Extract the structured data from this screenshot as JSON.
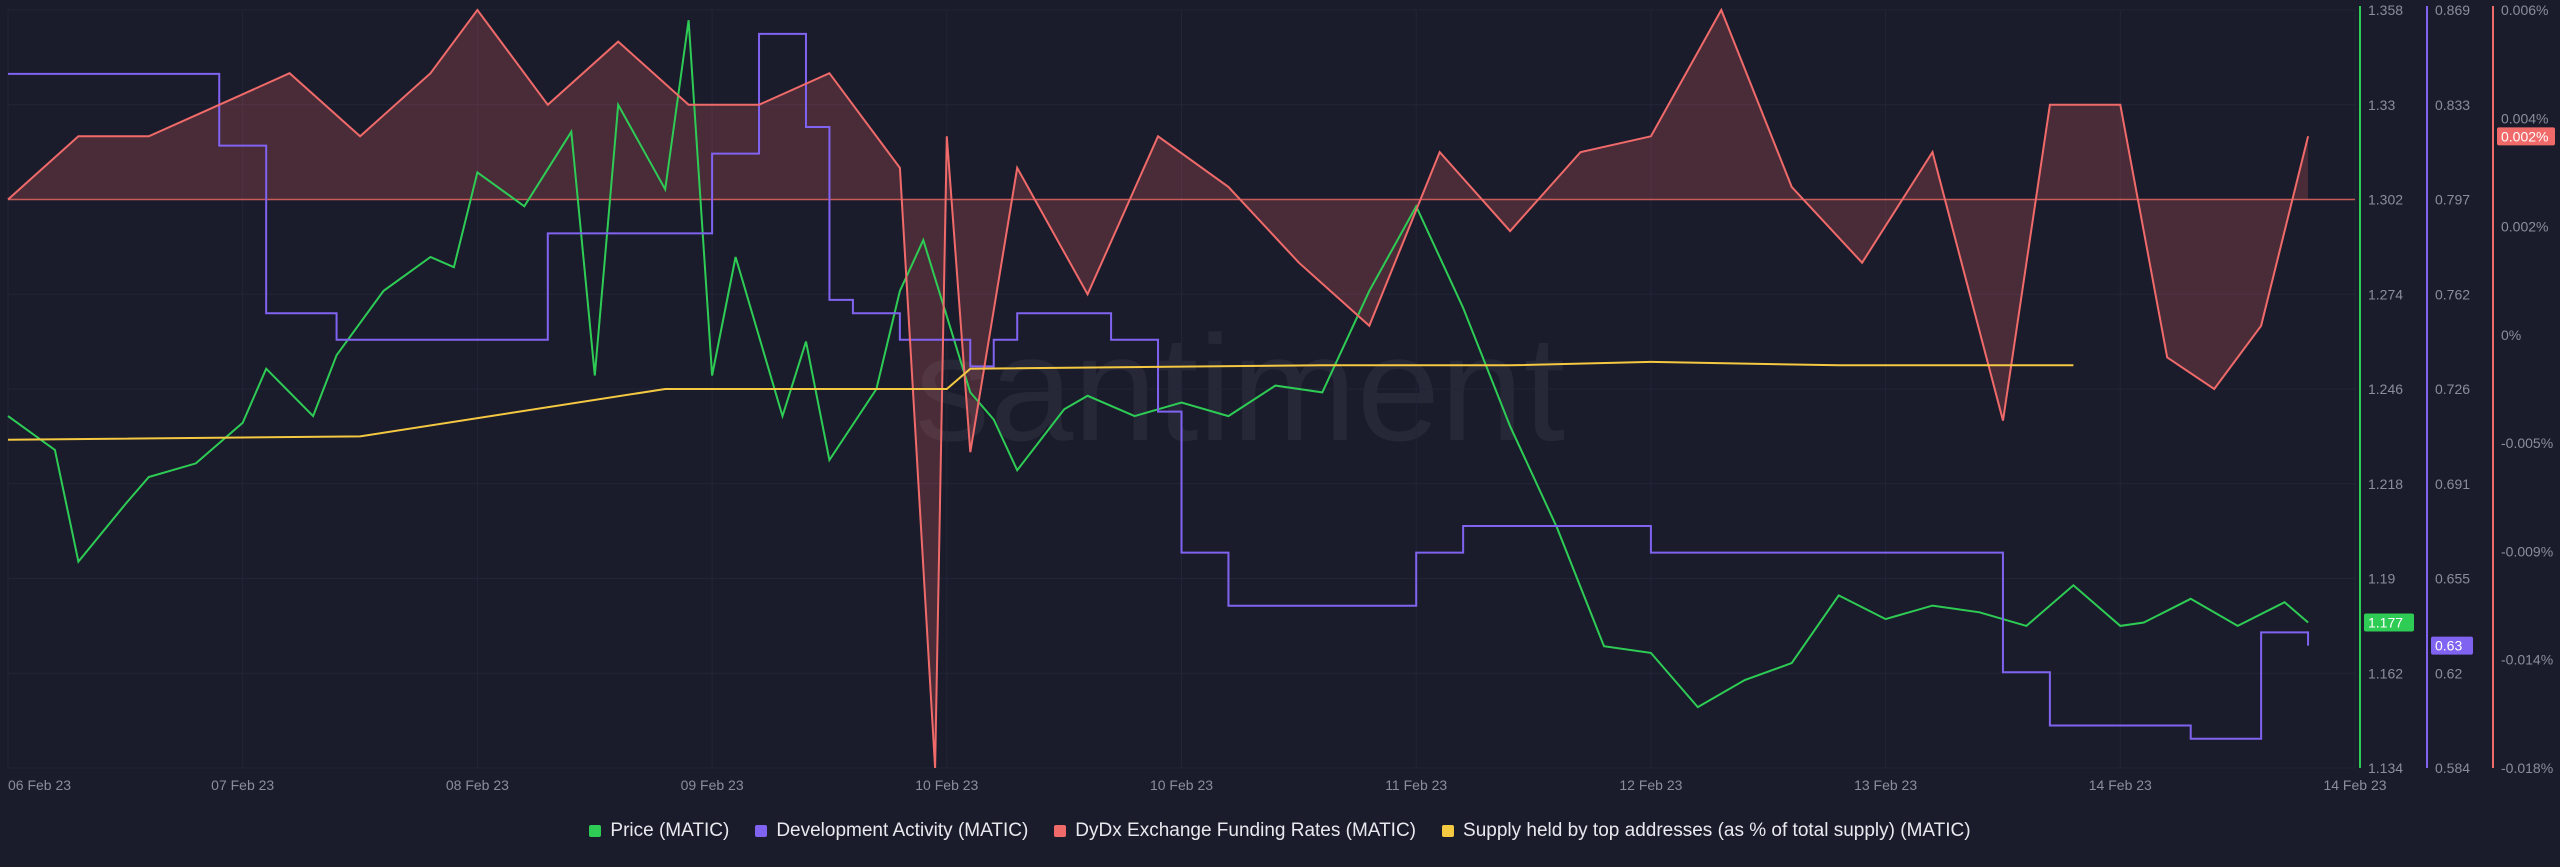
{
  "chart_data": {
    "type": "line",
    "watermark": "santiment",
    "x_ticks": [
      "06 Feb 23",
      "07 Feb 23",
      "08 Feb 23",
      "09 Feb 23",
      "10 Feb 23",
      "10 Feb 23",
      "11 Feb 23",
      "12 Feb 23",
      "13 Feb 23",
      "14 Feb 23",
      "14 Feb 23"
    ],
    "axes": {
      "price": {
        "ticks": [
          "1.358",
          "1.33",
          "1.302",
          "1.274",
          "1.246",
          "1.218",
          "1.19",
          "1.162",
          "1.134"
        ],
        "range": [
          1.134,
          1.358
        ],
        "color": "#2ecc55",
        "current_label": "1.177"
      },
      "dev_activity": {
        "ticks": [
          "0.869",
          "0.833",
          "0.797",
          "0.762",
          "0.726",
          "0.691",
          "0.655",
          "0.62",
          "0.584"
        ],
        "range": [
          0.584,
          0.869
        ],
        "color": "#8063f0",
        "current_label": "0.63"
      },
      "funding": {
        "ticks": [
          "0.006%",
          "0.004%",
          "0.002%",
          "0%",
          "-0.005%",
          "-0.009%",
          "-0.014%",
          "-0.018%"
        ],
        "range": [
          -0.018,
          0.006
        ],
        "color": "#f06a6a",
        "current_label": "0.002%"
      }
    },
    "series": [
      {
        "name": "Price (MATIC)",
        "color": "#2ecc55",
        "axis": "price",
        "x": [
          0,
          0.2,
          0.3,
          0.5,
          0.6,
          0.8,
          1.0,
          1.1,
          1.3,
          1.4,
          1.6,
          1.8,
          1.9,
          2.0,
          2.2,
          2.4,
          2.5,
          2.6,
          2.8,
          2.9,
          3.0,
          3.1,
          3.3,
          3.4,
          3.5,
          3.7,
          3.8,
          3.9,
          4.1,
          4.2,
          4.3,
          4.5,
          4.6,
          4.8,
          4.9,
          5.0,
          5.2,
          5.4,
          5.6,
          5.8,
          6.0,
          6.2,
          6.4,
          6.6,
          6.8,
          7.0,
          7.2,
          7.4,
          7.6,
          7.8,
          8.0,
          8.2,
          8.4,
          8.6,
          8.8,
          9.0,
          9.1,
          9.3,
          9.5,
          9.7,
          9.8
        ],
        "values": [
          1.238,
          1.228,
          1.195,
          1.212,
          1.22,
          1.224,
          1.236,
          1.252,
          1.238,
          1.256,
          1.275,
          1.285,
          1.282,
          1.31,
          1.3,
          1.322,
          1.25,
          1.33,
          1.305,
          1.355,
          1.25,
          1.285,
          1.238,
          1.26,
          1.225,
          1.246,
          1.275,
          1.29,
          1.245,
          1.237,
          1.222,
          1.24,
          1.244,
          1.238,
          1.24,
          1.242,
          1.238,
          1.247,
          1.245,
          1.275,
          1.3,
          1.27,
          1.235,
          1.205,
          1.17,
          1.168,
          1.152,
          1.16,
          1.165,
          1.185,
          1.178,
          1.182,
          1.18,
          1.176,
          1.188,
          1.176,
          1.177,
          1.184,
          1.176,
          1.183,
          1.177
        ]
      },
      {
        "name": "Development Activity (MATIC)",
        "color": "#8063f0",
        "axis": "dev_activity",
        "x": [
          0,
          0.5,
          0.9,
          1.1,
          1.4,
          2.0,
          2.3,
          2.7,
          3.0,
          3.2,
          3.4,
          3.5,
          3.6,
          3.8,
          4.1,
          4.2,
          4.3,
          4.7,
          4.9,
          5.0,
          5.2,
          5.6,
          6.0,
          6.2,
          6.6,
          7.0,
          8.0,
          8.3,
          8.5,
          8.7,
          8.9,
          9.1,
          9.3,
          9.5,
          9.6,
          9.8
        ],
        "values": [
          0.845,
          0.845,
          0.818,
          0.755,
          0.745,
          0.745,
          0.785,
          0.785,
          0.815,
          0.86,
          0.825,
          0.76,
          0.755,
          0.745,
          0.735,
          0.745,
          0.755,
          0.745,
          0.718,
          0.665,
          0.645,
          0.645,
          0.665,
          0.675,
          0.675,
          0.665,
          0.665,
          0.665,
          0.62,
          0.6,
          0.6,
          0.6,
          0.595,
          0.595,
          0.635,
          0.63
        ]
      },
      {
        "name": "DyDx Exchange Funding Rates (MATIC)",
        "color": "#f06a6a",
        "axis": "funding",
        "x": [
          0,
          0.3,
          0.6,
          0.9,
          1.2,
          1.5,
          1.8,
          2.0,
          2.3,
          2.6,
          2.9,
          3.2,
          3.5,
          3.8,
          3.95,
          4.0,
          4.1,
          4.3,
          4.6,
          4.9,
          5.2,
          5.5,
          5.8,
          6.1,
          6.4,
          6.7,
          7.0,
          7.3,
          7.6,
          7.9,
          8.2,
          8.5,
          8.7,
          9.0,
          9.2,
          9.4,
          9.6,
          9.8
        ],
        "values": [
          0,
          0.002,
          0.002,
          0.003,
          0.004,
          0.002,
          0.004,
          0.006,
          0.003,
          0.005,
          0.003,
          0.003,
          0.004,
          0.001,
          -0.018,
          0.002,
          -0.008,
          0.001,
          -0.003,
          0.002,
          0.0004,
          -0.002,
          -0.004,
          0.0015,
          -0.001,
          0.0015,
          0.002,
          0.006,
          0.0004,
          -0.002,
          0.0015,
          -0.007,
          0.003,
          0.003,
          -0.005,
          -0.006,
          -0.004,
          0.002
        ]
      },
      {
        "name": "Supply held by top addresses (as % of total supply) (MATIC)",
        "color": "#f5c842",
        "axis": "price",
        "x": [
          0,
          1.5,
          2.8,
          4.0,
          4.1,
          5.6,
          6.4,
          7.0,
          7.8,
          8.8
        ],
        "values": [
          1.231,
          1.232,
          1.246,
          1.246,
          1.252,
          1.253,
          1.253,
          1.254,
          1.253,
          1.253
        ]
      }
    ]
  },
  "legend": {
    "price": "Price (MATIC)",
    "dev": "Development Activity (MATIC)",
    "funding": "DyDx Exchange Funding Rates (MATIC)",
    "supply": "Supply held by top addresses (as % of total supply) (MATIC)"
  }
}
